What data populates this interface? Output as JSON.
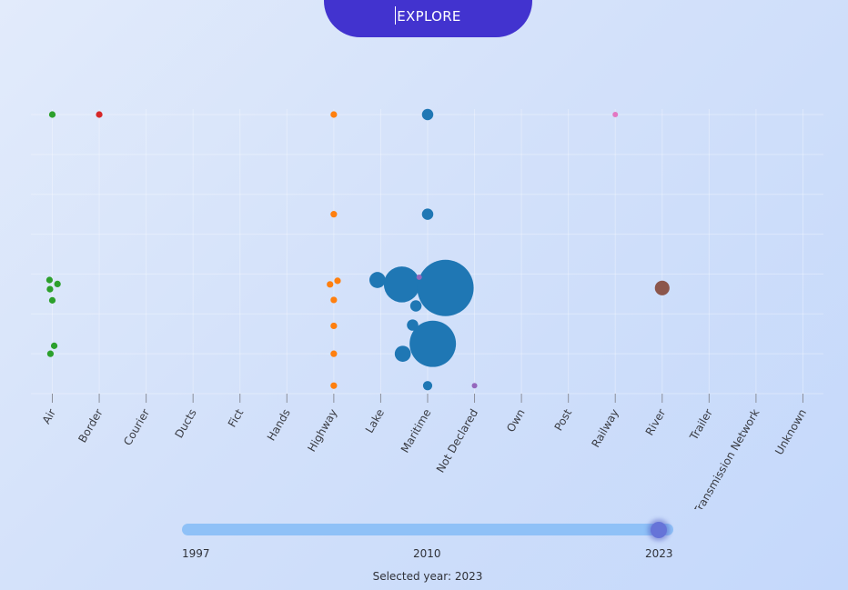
{
  "explore_button": {
    "label": "EXPLORE"
  },
  "chart_data": {
    "type": "scatter",
    "title": "",
    "xlabel": "",
    "ylabel": "",
    "categories": [
      "Air",
      "Border",
      "Courier",
      "Ducts",
      "Fict",
      "Hands",
      "Highway",
      "Lake",
      "Maritime",
      "Not Declared",
      "Own",
      "Post",
      "Railway",
      "River",
      "Trailer",
      "Transmission Network",
      "Unknown"
    ],
    "rows": 7,
    "grid": true,
    "legend": "none",
    "colors": {
      "Air": "#2ca02c",
      "Border": "#d62728",
      "Highway": "#ff7f0e",
      "Maritime": "#1f77b4",
      "Not Declared": "#9467bd",
      "Railway": "#e377c2",
      "River": "#8c564b"
    },
    "points": [
      {
        "category": "Air",
        "offset": 0.0,
        "y": 7.0,
        "size": 1
      },
      {
        "category": "Air",
        "offset": -0.06,
        "y": 2.85,
        "size": 1
      },
      {
        "category": "Air",
        "offset": 0.11,
        "y": 2.75,
        "size": 1
      },
      {
        "category": "Air",
        "offset": -0.05,
        "y": 2.62,
        "size": 1
      },
      {
        "category": "Air",
        "offset": 0.0,
        "y": 2.34,
        "size": 1
      },
      {
        "category": "Air",
        "offset": 0.04,
        "y": 1.2,
        "size": 1
      },
      {
        "category": "Air",
        "offset": -0.04,
        "y": 1.0,
        "size": 1
      },
      {
        "category": "Border",
        "offset": 0.0,
        "y": 7.0,
        "size": 1
      },
      {
        "category": "Highway",
        "offset": 0.0,
        "y": 7.0,
        "size": 1
      },
      {
        "category": "Highway",
        "offset": 0.0,
        "y": 4.5,
        "size": 1
      },
      {
        "category": "Highway",
        "offset": 0.08,
        "y": 2.83,
        "size": 1
      },
      {
        "category": "Highway",
        "offset": -0.08,
        "y": 2.74,
        "size": 1
      },
      {
        "category": "Highway",
        "offset": 0.0,
        "y": 2.35,
        "size": 1
      },
      {
        "category": "Highway",
        "offset": 0.0,
        "y": 1.7,
        "size": 1
      },
      {
        "category": "Highway",
        "offset": 0.0,
        "y": 1.0,
        "size": 1
      },
      {
        "category": "Highway",
        "offset": 0.0,
        "y": 0.2,
        "size": 1
      },
      {
        "category": "Maritime",
        "offset": 0.0,
        "y": 7.0,
        "size": 3
      },
      {
        "category": "Maritime",
        "offset": 0.0,
        "y": 4.5,
        "size": 3
      },
      {
        "category": "Maritime",
        "offset": -1.07,
        "y": 2.85,
        "size": 6
      },
      {
        "category": "Maritime",
        "offset": -0.55,
        "y": 2.74,
        "size": 30
      },
      {
        "category": "Maritime",
        "offset": 0.38,
        "y": 2.65,
        "size": 74
      },
      {
        "category": "Maritime",
        "offset": -0.25,
        "y": 2.2,
        "size": 3
      },
      {
        "category": "Maritime",
        "offset": -0.32,
        "y": 1.72,
        "size": 3
      },
      {
        "category": "Maritime",
        "offset": -0.53,
        "y": 1.0,
        "size": 6
      },
      {
        "category": "Maritime",
        "offset": 0.11,
        "y": 1.25,
        "size": 50
      },
      {
        "category": "Maritime",
        "offset": 0.0,
        "y": 0.2,
        "size": 2
      },
      {
        "category": "Not Declared",
        "offset": -1.18,
        "y": 2.92,
        "size": 0.5
      },
      {
        "category": "Not Declared",
        "offset": 0.0,
        "y": 0.2,
        "size": 0.5
      },
      {
        "category": "Railway",
        "offset": 0.0,
        "y": 7.0,
        "size": 0.5
      },
      {
        "category": "River",
        "offset": 0.0,
        "y": 2.65,
        "size": 5
      }
    ]
  },
  "slider": {
    "min_label": "1997",
    "mid_label": "2010",
    "max_label": "2023",
    "min": 1997,
    "max": 2023,
    "value": 2023,
    "selected_text": "Selected year: 2023"
  }
}
